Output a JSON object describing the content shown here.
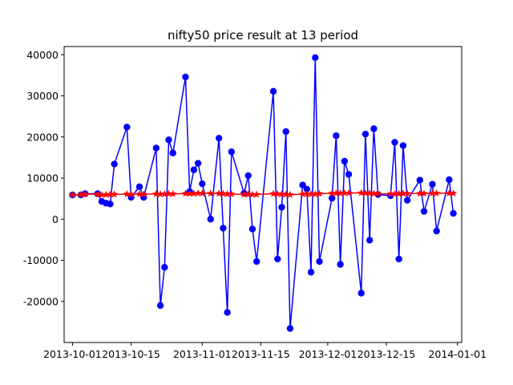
{
  "chart_data": {
    "type": "line",
    "title": "nifty50 price result at 13 period",
    "xlabel": "",
    "ylabel": "",
    "x_axis": "date",
    "xlim": [
      "2013-09-29",
      "2014-01-02"
    ],
    "ylim": [
      -30000,
      42000
    ],
    "x_ticks": [
      "2013-10-01",
      "2013-10-15",
      "2013-11-01",
      "2013-11-15",
      "2013-12-01",
      "2013-12-15",
      "2014-01-01"
    ],
    "y_ticks": [
      -20000,
      -10000,
      0,
      10000,
      20000,
      30000,
      40000
    ],
    "legend": "none",
    "grid": false,
    "series": [
      {
        "color": "#0000ff",
        "marker": "circle",
        "points": [
          [
            "2013-10-01",
            5900
          ],
          [
            "2013-10-03",
            5900
          ],
          [
            "2013-10-04",
            6200
          ],
          [
            "2013-10-07",
            6200
          ],
          [
            "2013-10-08",
            4300
          ],
          [
            "2013-10-09",
            3900
          ],
          [
            "2013-10-10",
            3700
          ],
          [
            "2013-10-11",
            13400
          ],
          [
            "2013-10-14",
            22400
          ],
          [
            "2013-10-15",
            5300
          ],
          [
            "2013-10-17",
            7900
          ],
          [
            "2013-10-18",
            5300
          ],
          [
            "2013-10-21",
            17300
          ],
          [
            "2013-10-22",
            -21000
          ],
          [
            "2013-10-23",
            -11700
          ],
          [
            "2013-10-24",
            19300
          ],
          [
            "2013-10-25",
            16100
          ],
          [
            "2013-10-28",
            34600
          ],
          [
            "2013-10-29",
            6700
          ],
          [
            "2013-10-30",
            12000
          ],
          [
            "2013-10-31",
            13600
          ],
          [
            "2013-11-01",
            8600
          ],
          [
            "2013-11-03",
            0
          ],
          [
            "2013-11-05",
            19700
          ],
          [
            "2013-11-06",
            -2200
          ],
          [
            "2013-11-07",
            -22700
          ],
          [
            "2013-11-08",
            16400
          ],
          [
            "2013-11-11",
            6300
          ],
          [
            "2013-11-12",
            10600
          ],
          [
            "2013-11-13",
            -2400
          ],
          [
            "2013-11-14",
            -10300
          ],
          [
            "2013-11-18",
            31100
          ],
          [
            "2013-11-19",
            -9700
          ],
          [
            "2013-11-20",
            2900
          ],
          [
            "2013-11-21",
            21300
          ],
          [
            "2013-11-22",
            -26600
          ],
          [
            "2013-11-25",
            8300
          ],
          [
            "2013-11-26",
            7300
          ],
          [
            "2013-11-27",
            -12900
          ],
          [
            "2013-11-28",
            39300
          ],
          [
            "2013-11-29",
            -10300
          ],
          [
            "2013-12-02",
            5100
          ],
          [
            "2013-12-03",
            20300
          ],
          [
            "2013-12-04",
            -11000
          ],
          [
            "2013-12-05",
            14100
          ],
          [
            "2013-12-06",
            10900
          ],
          [
            "2013-12-09",
            -18000
          ],
          [
            "2013-12-10",
            20700
          ],
          [
            "2013-12-11",
            -5100
          ],
          [
            "2013-12-12",
            22000
          ],
          [
            "2013-12-13",
            6000
          ],
          [
            "2013-12-16",
            5700
          ],
          [
            "2013-12-17",
            18700
          ],
          [
            "2013-12-18",
            -9700
          ],
          [
            "2013-12-19",
            17900
          ],
          [
            "2013-12-20",
            4600
          ],
          [
            "2013-12-23",
            9500
          ],
          [
            "2013-12-24",
            1900
          ],
          [
            "2013-12-26",
            8500
          ],
          [
            "2013-12-27",
            -2900
          ],
          [
            "2013-12-30",
            9600
          ],
          [
            "2013-12-31",
            1400
          ]
        ]
      },
      {
        "color": "#ff0000",
        "marker": "star",
        "points": [
          [
            "2013-10-01",
            5900
          ],
          [
            "2013-10-03",
            5950
          ],
          [
            "2013-10-04",
            6050
          ],
          [
            "2013-10-07",
            6100
          ],
          [
            "2013-10-08",
            5900
          ],
          [
            "2013-10-09",
            5950
          ],
          [
            "2013-10-10",
            6000
          ],
          [
            "2013-10-11",
            6050
          ],
          [
            "2013-10-14",
            6100
          ],
          [
            "2013-10-15",
            6050
          ],
          [
            "2013-10-17",
            6100
          ],
          [
            "2013-10-18",
            6050
          ],
          [
            "2013-10-21",
            6150
          ],
          [
            "2013-10-22",
            6100
          ],
          [
            "2013-10-23",
            6100
          ],
          [
            "2013-10-24",
            6200
          ],
          [
            "2013-10-25",
            6150
          ],
          [
            "2013-10-28",
            6250
          ],
          [
            "2013-10-29",
            6200
          ],
          [
            "2013-10-30",
            6250
          ],
          [
            "2013-10-31",
            6300
          ],
          [
            "2013-11-01",
            6300
          ],
          [
            "2013-11-03",
            6250
          ],
          [
            "2013-11-05",
            6250
          ],
          [
            "2013-11-06",
            6200
          ],
          [
            "2013-11-07",
            6150
          ],
          [
            "2013-11-08",
            6100
          ],
          [
            "2013-11-11",
            6050
          ],
          [
            "2013-11-12",
            6050
          ],
          [
            "2013-11-13",
            6000
          ],
          [
            "2013-11-14",
            6000
          ],
          [
            "2013-11-18",
            6200
          ],
          [
            "2013-11-19",
            6150
          ],
          [
            "2013-11-20",
            6100
          ],
          [
            "2013-11-21",
            6000
          ],
          [
            "2013-11-22",
            5950
          ],
          [
            "2013-11-25",
            6100
          ],
          [
            "2013-11-26",
            6150
          ],
          [
            "2013-11-27",
            6100
          ],
          [
            "2013-11-28",
            6100
          ],
          [
            "2013-11-29",
            6200
          ],
          [
            "2013-12-02",
            6300
          ],
          [
            "2013-12-03",
            6300
          ],
          [
            "2013-12-04",
            6300
          ],
          [
            "2013-12-05",
            6350
          ],
          [
            "2013-12-06",
            6350
          ],
          [
            "2013-12-09",
            6400
          ],
          [
            "2013-12-10",
            6350
          ],
          [
            "2013-12-11",
            6300
          ],
          [
            "2013-12-12",
            6250
          ],
          [
            "2013-12-13",
            6200
          ],
          [
            "2013-12-16",
            6150
          ],
          [
            "2013-12-17",
            6150
          ],
          [
            "2013-12-18",
            6200
          ],
          [
            "2013-12-19",
            6250
          ],
          [
            "2013-12-20",
            6250
          ],
          [
            "2013-12-23",
            6250
          ],
          [
            "2013-12-24",
            6250
          ],
          [
            "2013-12-26",
            6300
          ],
          [
            "2013-12-27",
            6300
          ],
          [
            "2013-12-30",
            6300
          ],
          [
            "2013-12-31",
            6300
          ]
        ]
      }
    ]
  }
}
